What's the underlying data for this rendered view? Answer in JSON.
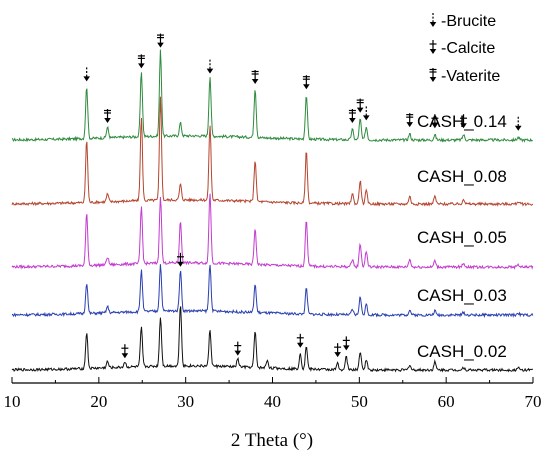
{
  "chart_data": {
    "type": "line",
    "xlabel": "2 Theta (°)",
    "xlim": [
      10,
      70
    ],
    "xticks": [
      10,
      20,
      30,
      40,
      50,
      60,
      70
    ],
    "legend": {
      "placement": "top-right",
      "entries": [
        {
          "symbol": "brucite",
          "label": "-Brucite"
        },
        {
          "symbol": "calcite",
          "label": "-Calcite"
        },
        {
          "symbol": "vaterite",
          "label": "-Vaterite"
        }
      ]
    },
    "series": [
      {
        "name": "CASH_0.14",
        "color": "#2e8b3e",
        "peaks": [
          {
            "x": 18.6,
            "h": 1.0
          },
          {
            "x": 21.0,
            "h": 0.2
          },
          {
            "x": 24.9,
            "h": 1.25
          },
          {
            "x": 27.1,
            "h": 1.65
          },
          {
            "x": 29.4,
            "h": 0.25
          },
          {
            "x": 32.8,
            "h": 1.15
          },
          {
            "x": 38.0,
            "h": 0.95
          },
          {
            "x": 43.9,
            "h": 0.85
          },
          {
            "x": 49.2,
            "h": 0.2
          },
          {
            "x": 50.1,
            "h": 0.4
          },
          {
            "x": 50.8,
            "h": 0.25
          },
          {
            "x": 55.8,
            "h": 0.12
          },
          {
            "x": 58.7,
            "h": 0.1
          },
          {
            "x": 62.0,
            "h": 0.1
          },
          {
            "x": 68.3,
            "h": 0.05
          }
        ]
      },
      {
        "name": "CASH_0.08",
        "color": "#b5452f",
        "peaks": [
          {
            "x": 18.6,
            "h": 1.2
          },
          {
            "x": 21.0,
            "h": 0.15
          },
          {
            "x": 24.9,
            "h": 1.6
          },
          {
            "x": 27.1,
            "h": 2.0
          },
          {
            "x": 29.4,
            "h": 0.3
          },
          {
            "x": 32.8,
            "h": 1.45
          },
          {
            "x": 38.0,
            "h": 0.8
          },
          {
            "x": 43.9,
            "h": 1.0
          },
          {
            "x": 49.2,
            "h": 0.2
          },
          {
            "x": 50.1,
            "h": 0.45
          },
          {
            "x": 50.8,
            "h": 0.25
          },
          {
            "x": 55.8,
            "h": 0.15
          },
          {
            "x": 58.7,
            "h": 0.15
          },
          {
            "x": 62.0,
            "h": 0.1
          },
          {
            "x": 68.3,
            "h": 0.05
          }
        ]
      },
      {
        "name": "CASH_0.05",
        "color": "#c23ccf",
        "peaks": [
          {
            "x": 18.6,
            "h": 1.0
          },
          {
            "x": 21.0,
            "h": 0.15
          },
          {
            "x": 24.9,
            "h": 1.1
          },
          {
            "x": 27.1,
            "h": 1.3
          },
          {
            "x": 29.4,
            "h": 0.8
          },
          {
            "x": 32.8,
            "h": 1.35
          },
          {
            "x": 38.0,
            "h": 0.7
          },
          {
            "x": 43.9,
            "h": 0.9
          },
          {
            "x": 49.2,
            "h": 0.15
          },
          {
            "x": 50.1,
            "h": 0.45
          },
          {
            "x": 50.8,
            "h": 0.3
          },
          {
            "x": 55.8,
            "h": 0.15
          },
          {
            "x": 58.7,
            "h": 0.12
          },
          {
            "x": 62.0,
            "h": 0.08
          },
          {
            "x": 68.3,
            "h": 0.05
          }
        ]
      },
      {
        "name": "CASH_0.03",
        "color": "#2a3fb0",
        "peaks": [
          {
            "x": 18.6,
            "h": 0.6
          },
          {
            "x": 21.0,
            "h": 0.12
          },
          {
            "x": 24.9,
            "h": 0.8
          },
          {
            "x": 27.1,
            "h": 0.9
          },
          {
            "x": 29.4,
            "h": 0.8
          },
          {
            "x": 32.8,
            "h": 0.9
          },
          {
            "x": 38.0,
            "h": 0.55
          },
          {
            "x": 43.9,
            "h": 0.5
          },
          {
            "x": 49.2,
            "h": 0.1
          },
          {
            "x": 50.1,
            "h": 0.35
          },
          {
            "x": 50.8,
            "h": 0.2
          },
          {
            "x": 55.8,
            "h": 0.1
          },
          {
            "x": 58.7,
            "h": 0.08
          },
          {
            "x": 62.0,
            "h": 0.05
          },
          {
            "x": 68.3,
            "h": 0.04
          }
        ]
      },
      {
        "name": "CASH_0.02",
        "color": "#111111",
        "peaks": [
          {
            "x": 18.6,
            "h": 0.7
          },
          {
            "x": 21.0,
            "h": 0.12
          },
          {
            "x": 23.0,
            "h": 0.1
          },
          {
            "x": 24.9,
            "h": 0.75
          },
          {
            "x": 27.1,
            "h": 0.95
          },
          {
            "x": 29.4,
            "h": 1.2
          },
          {
            "x": 32.8,
            "h": 0.7
          },
          {
            "x": 36.0,
            "h": 0.15
          },
          {
            "x": 38.0,
            "h": 0.7
          },
          {
            "x": 39.4,
            "h": 0.15
          },
          {
            "x": 43.2,
            "h": 0.3
          },
          {
            "x": 43.9,
            "h": 0.45
          },
          {
            "x": 47.5,
            "h": 0.12
          },
          {
            "x": 48.5,
            "h": 0.25
          },
          {
            "x": 50.1,
            "h": 0.35
          },
          {
            "x": 50.8,
            "h": 0.2
          },
          {
            "x": 55.8,
            "h": 0.1
          },
          {
            "x": 58.7,
            "h": 0.15
          },
          {
            "x": 62.0,
            "h": 0.05
          },
          {
            "x": 68.3,
            "h": 0.04
          }
        ]
      }
    ],
    "annotations": [
      {
        "series": "CASH_0.14",
        "markers": [
          {
            "x": 18.6,
            "type": "brucite"
          },
          {
            "x": 21.0,
            "type": "vaterite"
          },
          {
            "x": 24.9,
            "type": "vaterite"
          },
          {
            "x": 27.1,
            "type": "vaterite"
          },
          {
            "x": 32.8,
            "type": "brucite"
          },
          {
            "x": 38.0,
            "type": "vaterite"
          },
          {
            "x": 43.9,
            "type": "vaterite"
          },
          {
            "x": 49.2,
            "type": "vaterite"
          },
          {
            "x": 50.1,
            "type": "vaterite"
          },
          {
            "x": 50.8,
            "type": "brucite"
          },
          {
            "x": 55.8,
            "type": "vaterite"
          },
          {
            "x": 58.7,
            "type": "calcite"
          },
          {
            "x": 62.0,
            "type": "calcite"
          },
          {
            "x": 68.3,
            "type": "brucite"
          }
        ]
      },
      {
        "series": "CASH_0.03",
        "markers": [
          {
            "x": 29.4,
            "type": "calcite"
          }
        ]
      },
      {
        "series": "CASH_0.02",
        "markers": [
          {
            "x": 23.0,
            "type": "calcite"
          },
          {
            "x": 36.0,
            "type": "calcite"
          },
          {
            "x": 43.2,
            "type": "calcite"
          },
          {
            "x": 47.5,
            "type": "calcite"
          },
          {
            "x": 48.5,
            "type": "calcite"
          }
        ]
      }
    ]
  }
}
